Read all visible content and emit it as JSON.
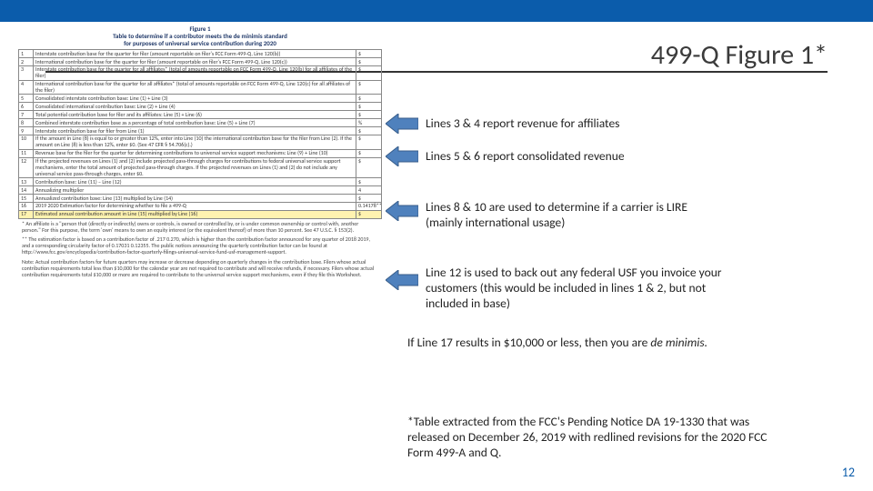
{
  "page": {
    "title": "499-Q Figure 1*",
    "page_number": "12",
    "accent_color": "#0b5cab",
    "highlight_color": "#fff3b0",
    "arrow_fill": "#4f81bd",
    "arrow_stroke": "#385d8a"
  },
  "figure": {
    "caption_line1": "Figure 1",
    "caption_line2": "Table to determine if a contributor meets the de minimis standard",
    "caption_line3": "for purposes of universal service contribution during 2020",
    "rows": [
      {
        "n": "1",
        "desc": "Interstate contribution base for the quarter for filer (amount reportable on filer's FCC Form 499-Q, Line 120(b))",
        "val": "$"
      },
      {
        "n": "2",
        "desc": "International contribution base for the quarter for filer (amount reportable on filer's FCC Form 499-Q, Line 120(c))",
        "val": "$"
      },
      {
        "n": "3",
        "desc": "Interstate contribution base for the quarter for all affiliates* (total of amounts reportable on FCC Form 499-Q, Line 120(b) for all affiliates of the filer)",
        "val": "$"
      },
      {
        "n": "4",
        "desc": "International contribution base for the quarter for all affiliates* (total of amounts reportable on FCC Form 499-Q, Line 120(c) for all affiliates of the filer)",
        "val": "$"
      },
      {
        "n": "5",
        "desc": "Consolidated interstate contribution base: Line (1) + Line (3)",
        "val": "$"
      },
      {
        "n": "6",
        "desc": "Consolidated international contribution base: Line (2) + Line (4)",
        "val": "$"
      },
      {
        "n": "7",
        "desc": "Total potential contribution base for filer and its affiliates: Line (5) + Line (6)",
        "val": "$"
      },
      {
        "n": "8",
        "desc": "Combined interstate contribution base as a percentage of total contribution base: Line (5) ÷ Line (7)",
        "val": "%"
      },
      {
        "n": "9",
        "desc": "Interstate contribution base for filer from Line (1)",
        "val": "$"
      },
      {
        "n": "10",
        "desc": "If the amount in Line (8) is equal to or greater than 12%, enter into Line (10) the international contribution base for the filer from Line (2). If the amount on Line (8) is less than 12%, enter $0. (See 47 CFR § 54.706(c).)",
        "val": "$"
      },
      {
        "n": "11",
        "desc": "Revenue base for the filer for the quarter for determining contributions to universal service support mechanisms: Line (9) + Line (10)",
        "val": "$"
      },
      {
        "n": "12",
        "desc": "If the projected revenues on Lines (1) and (2) include projected pass-through charges for contributions to federal universal service support mechanisms, enter the total amount of projected pass-through charges. If the projected revenues on Lines (1) and (2) do not include any universal service pass-through charges, enter $0.",
        "val": "$"
      },
      {
        "n": "13",
        "desc": "Contribution base: Line (11) – Line (12)",
        "val": "$"
      },
      {
        "n": "14",
        "desc": "Annualizing multiplier",
        "val": "4"
      },
      {
        "n": "15",
        "desc": "Annualized contribution base: Line (13) multiplied by Line (14)",
        "val": "$"
      },
      {
        "n": "16",
        "desc": "2019 2020 Estimation factor for determining whether to file a 499-Q",
        "val": "0.14178**"
      },
      {
        "n": "17",
        "desc": "Estimated annual contribution amount in Line (15) multiplied by Line (16)",
        "val": "$",
        "hl": true
      }
    ],
    "note_affiliate": "*   An affiliate is a \"person that (directly or indirectly) owns or controls, is owned or controlled by, or is under common ownership or control with, another person.\" For this purpose, the term 'own' means to own an equity interest (or the equivalent thereof) of more than 10 percent. See 47 U.S.C. § 153(2).",
    "note_factor": "**   The estimation factor is based on a contribution factor of .217 0.270, which is higher than the contribution factor announced for any quarter of 2018 2019, and a corresponding circularity factor of 0.17031 0.12355. The public notices announcing the quarterly contribution factor can be found at http://www.fcc.gov/encyclopedia/contribution-factor-quarterly-filings-universal-service-fund-usf-management-support.",
    "note_bottom": "Note:  Actual contribution factors for future quarters may increase or decrease depending on quarterly changes in the contribution base. Filers whose actual contribution requirements total less than $10,000 for the calendar year are not required to contribute and will receive refunds, if necessary. Filers whose actual contribution requirements total $10,000 or more are required to contribute to the universal service support mechanisms, even if they file this Worksheet."
  },
  "annotations": {
    "a1": "Lines 3 & 4 report revenue for affiliates",
    "a2": "Lines 5 & 6 report consolidated revenue",
    "a3": "Lines 8 & 10 are used to determine if a carrier is LIRE (mainly international usage)",
    "a4": "Line 12 is used to back out any federal USF you invoice your customers (this would be included in lines 1 & 2, but not included in base)",
    "a5_pre": "If Line 17 results in $10,000 or less, then you are ",
    "a5_em": "de minimis.",
    "footnote": "*Table extracted from the FCC's Pending Notice DA 19-1330 that was released on December 26, 2019 with redlined revisions for the 2020 FCC Form 499-A and Q."
  }
}
